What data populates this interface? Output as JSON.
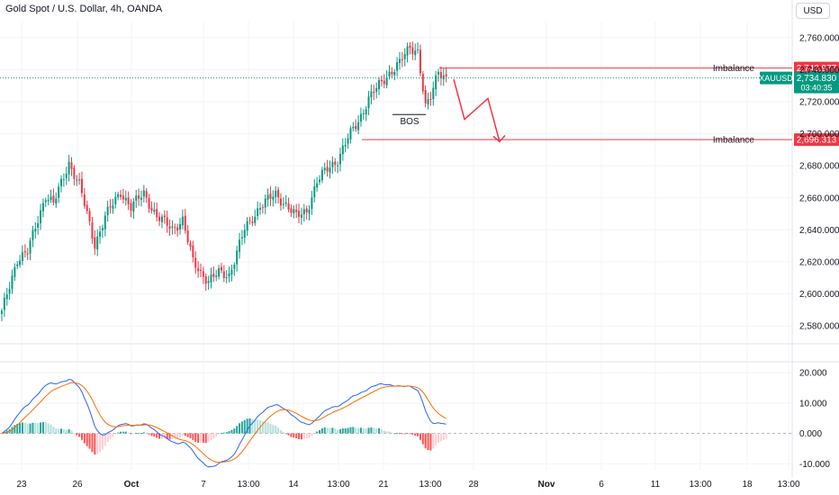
{
  "header": {
    "symbol_title": "Gold Spot / U.S. Dollar, 4h, OANDA",
    "currency_button": "USD"
  },
  "colors": {
    "up": "#089981",
    "down": "#f23645",
    "macd_line": "#2962ff",
    "signal_line": "#ff6d00",
    "hist_up": "#26a69a",
    "hist_up_light": "#b2dfdb",
    "hist_down": "#ff5252",
    "hist_down_light": "#ffcdd2",
    "level_line": "#f23645",
    "price_label": "#089981",
    "grid": "#f0f3fa",
    "text": "#131722"
  },
  "chart_data": [
    {
      "type": "candlestick",
      "title": "Gold Spot / U.S. Dollar, 4h, OANDA",
      "currency": "USD",
      "ylim": [
        2570,
        2770
      ],
      "y_ticks": [
        "2,760.000",
        "2,740.000",
        "2,720.000",
        "2,700.000",
        "2,680.000",
        "2,660.000",
        "2,640.000",
        "2,620.000",
        "2,600.000",
        "2,580.000"
      ],
      "x_ticks": [
        "23",
        "26",
        "Oct",
        "7",
        "13:00",
        "14",
        "13:00",
        "21",
        "13:00",
        "28",
        "Nov",
        "6",
        "11",
        "13:00",
        "18",
        "13:00"
      ],
      "symbol_label": "XAUUSD",
      "last_price": "2,734.830",
      "countdown": "03:40:35",
      "levels": [
        {
          "label": "Imbalance",
          "value": 2740.977,
          "value_text": "2,740.977"
        },
        {
          "label": "Imbalance",
          "value": 2696.313,
          "value_text": "2,696.313"
        }
      ],
      "annotations": [
        {
          "text": "BOS",
          "y": 2712
        }
      ],
      "projection_path": [
        [
          2736,
          2734
        ],
        [
          2709
        ],
        [
          2722
        ],
        [
          2695
        ]
      ],
      "anchors": [
        {
          "c": 0,
          "v": 2588
        },
        {
          "c": 6,
          "v": 2622
        },
        {
          "c": 10,
          "v": 2626
        },
        {
          "c": 17,
          "v": 2662
        },
        {
          "c": 20,
          "v": 2656
        },
        {
          "c": 26,
          "v": 2682
        },
        {
          "c": 30,
          "v": 2668
        },
        {
          "c": 36,
          "v": 2631
        },
        {
          "c": 40,
          "v": 2648
        },
        {
          "c": 46,
          "v": 2664
        },
        {
          "c": 50,
          "v": 2654
        },
        {
          "c": 55,
          "v": 2663
        },
        {
          "c": 60,
          "v": 2648
        },
        {
          "c": 66,
          "v": 2641
        },
        {
          "c": 70,
          "v": 2646
        },
        {
          "c": 74,
          "v": 2620
        },
        {
          "c": 80,
          "v": 2608
        },
        {
          "c": 84,
          "v": 2613
        },
        {
          "c": 88,
          "v": 2612
        },
        {
          "c": 94,
          "v": 2640
        },
        {
          "c": 100,
          "v": 2655
        },
        {
          "c": 106,
          "v": 2662
        },
        {
          "c": 110,
          "v": 2656
        },
        {
          "c": 114,
          "v": 2648
        },
        {
          "c": 118,
          "v": 2652
        },
        {
          "c": 122,
          "v": 2670
        },
        {
          "c": 126,
          "v": 2678
        },
        {
          "c": 130,
          "v": 2684
        },
        {
          "c": 134,
          "v": 2697
        },
        {
          "c": 138,
          "v": 2708
        },
        {
          "c": 142,
          "v": 2722
        },
        {
          "c": 146,
          "v": 2730
        },
        {
          "c": 150,
          "v": 2738
        },
        {
          "c": 154,
          "v": 2744
        },
        {
          "c": 158,
          "v": 2754
        },
        {
          "c": 161,
          "v": 2752
        },
        {
          "c": 164,
          "v": 2716
        },
        {
          "c": 166,
          "v": 2722
        },
        {
          "c": 169,
          "v": 2740
        },
        {
          "c": 172,
          "v": 2735
        }
      ]
    },
    {
      "type": "line",
      "title": "",
      "ylim": [
        -12,
        23
      ],
      "y_ticks": [
        "20.000",
        "10.000",
        "0.000",
        "-10.000"
      ],
      "series": [
        {
          "values": []
        },
        {
          "values": []
        }
      ]
    }
  ]
}
